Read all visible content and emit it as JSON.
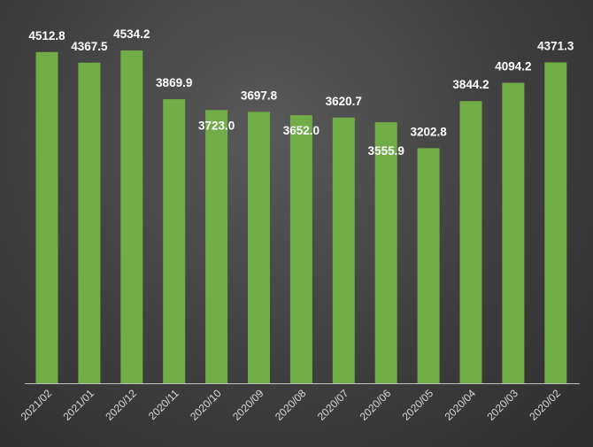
{
  "chart_data": {
    "type": "bar",
    "categories": [
      "2021/02",
      "2021/01",
      "2020/12",
      "2020/11",
      "2020/10",
      "2020/09",
      "2020/08",
      "2020/07",
      "2020/06",
      "2020/05",
      "2020/04",
      "2020/03",
      "2020/02"
    ],
    "values": [
      4512.8,
      4367.5,
      4534.2,
      3869.9,
      3723.0,
      3697.8,
      3652.0,
      3620.7,
      3555.9,
      3202.8,
      3844.2,
      4094.2,
      4371.3
    ],
    "value_labels": [
      "4512.8",
      "4367.5",
      "4534.2",
      "3869.9",
      "3723.0",
      "3697.8",
      "3652.0",
      "3620.7",
      "3555.9",
      "3202.8",
      "3844.2",
      "4094.2",
      "4371.3"
    ],
    "ylim": [
      0,
      4534.2
    ],
    "grid": false,
    "legend": "none",
    "colors": {
      "bar": "#70ad47",
      "axis": "#bfbfbf",
      "value_text": "#ffffff",
      "tick_text": "#d9d9d9"
    }
  }
}
